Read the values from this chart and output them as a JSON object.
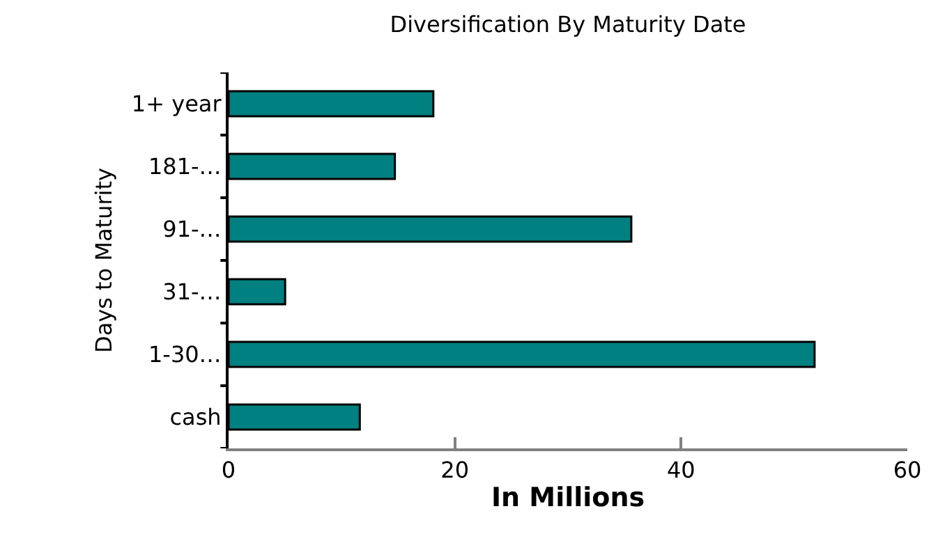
{
  "chart_data": {
    "type": "bar",
    "orientation": "horizontal",
    "title": "Diversification By Maturity Date",
    "xlabel": "In Millions",
    "ylabel": "Days to Maturity",
    "categories": [
      "1+ year",
      "181-…",
      "91-…",
      "31-…",
      "1-30…",
      "cash"
    ],
    "values": [
      18.1,
      14.7,
      35.6,
      5.0,
      51.8,
      11.6
    ],
    "color": "#008080",
    "xlim": [
      0,
      60
    ],
    "xticks": [
      0,
      20,
      40,
      60
    ],
    "legend": false
  }
}
